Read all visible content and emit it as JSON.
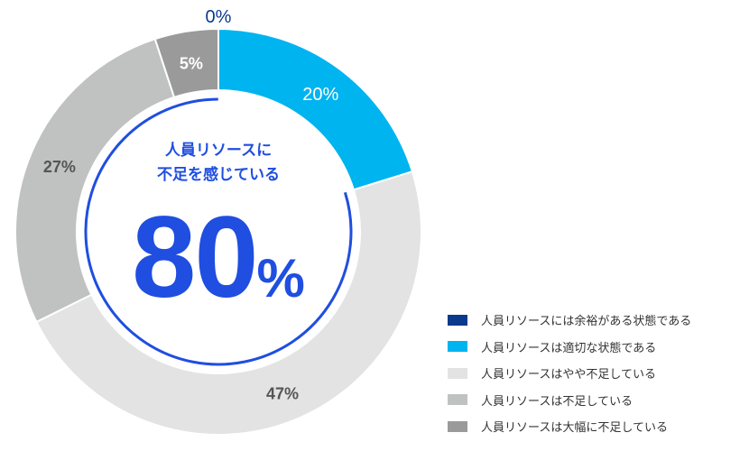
{
  "chart_data": {
    "type": "pie",
    "subtype": "donut",
    "title": "",
    "center_label": {
      "line1": "人員リソースに",
      "line2": "不足を感じている",
      "value": "80",
      "unit": "%"
    },
    "categories": [
      "人員リソースには余裕がある状態である",
      "人員リソースは適切な状態である",
      "人員リソースはやや不足している",
      "人員リソースは不足している",
      "人員リソースは大幅に不足している"
    ],
    "values": [
      0,
      20,
      47,
      27,
      5
    ],
    "labels": [
      "0%",
      "20%",
      "47%",
      "27%",
      "5%"
    ],
    "colors": [
      "#0a3a8c",
      "#00b4f0",
      "#e3e3e3",
      "#c0c1c1",
      "#9a9a9a"
    ],
    "legend_position": "bottom-right"
  },
  "legend": [
    {
      "label": "人員リソースには余裕がある状態である",
      "color": "#0a3a8c"
    },
    {
      "label": "人員リソースは適切な状態である",
      "color": "#00b4f0"
    },
    {
      "label": "人員リソースはやや不足している",
      "color": "#e3e3e3"
    },
    {
      "label": "人員リソースは不足している",
      "color": "#c0c1c1"
    },
    {
      "label": "人員リソースは大幅に不足している",
      "color": "#9a9a9a"
    }
  ],
  "accent_color": "#1f4ee0"
}
